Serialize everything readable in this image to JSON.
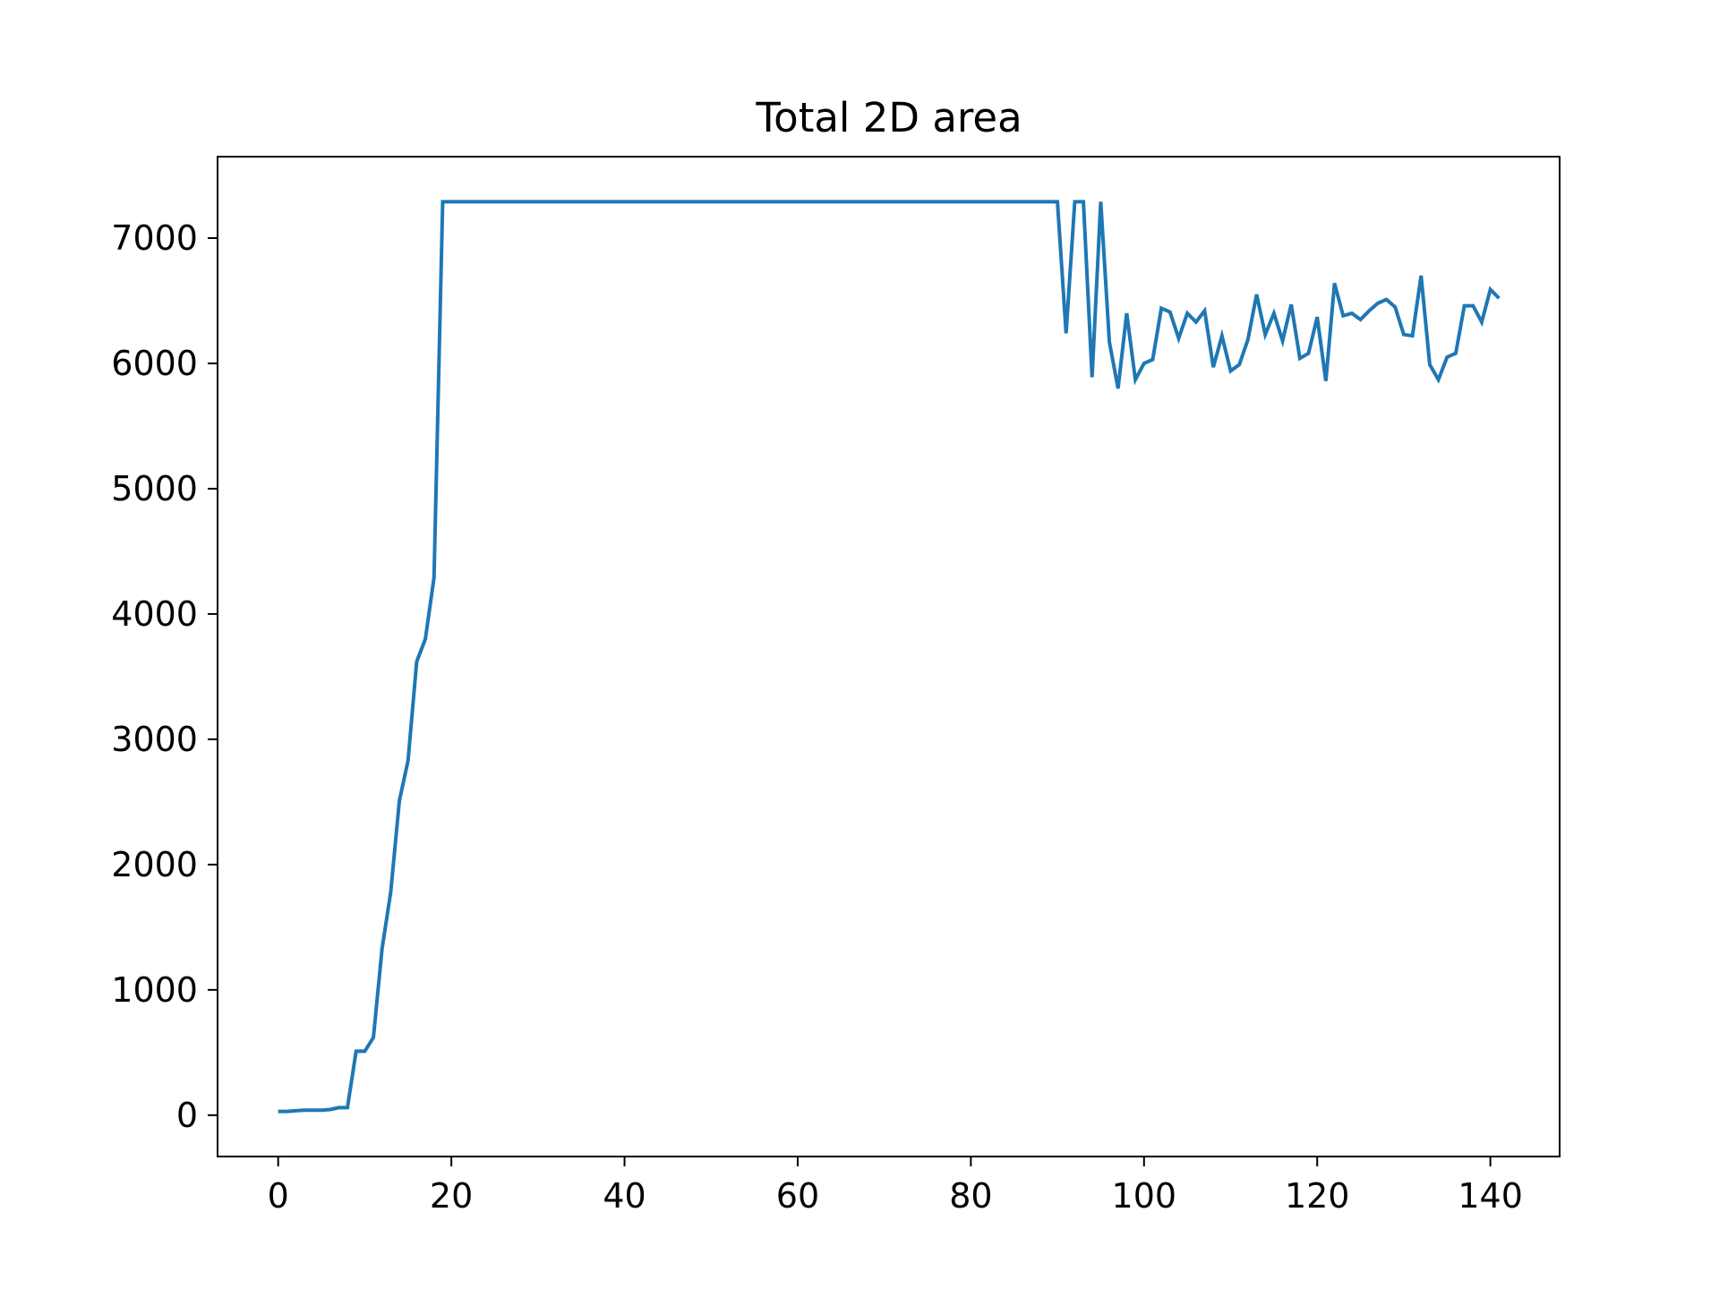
{
  "chart_data": {
    "type": "line",
    "title": "Total 2D area",
    "xlabel": "",
    "ylabel": "",
    "xlim": [
      -7,
      148
    ],
    "ylim": [
      -330,
      7650
    ],
    "grid": false,
    "legend": "none",
    "xticks": [
      0,
      20,
      40,
      60,
      80,
      100,
      120,
      140
    ],
    "yticks": [
      0,
      1000,
      2000,
      3000,
      4000,
      5000,
      6000,
      7000
    ],
    "line_color": "#1f77b4",
    "series": [
      {
        "x": [
          0,
          1,
          2,
          3,
          4,
          5,
          6,
          7,
          8,
          9,
          10,
          11,
          12,
          13,
          14,
          15,
          16,
          17,
          18,
          19,
          20,
          21,
          22,
          23,
          24,
          25,
          26,
          27,
          28,
          29,
          30,
          31,
          32,
          33,
          34,
          35,
          36,
          37,
          38,
          39,
          40,
          41,
          42,
          43,
          44,
          45,
          46,
          47,
          48,
          49,
          50,
          51,
          52,
          53,
          54,
          55,
          56,
          57,
          58,
          59,
          60,
          61,
          62,
          63,
          64,
          65,
          66,
          67,
          68,
          69,
          70,
          71,
          72,
          73,
          74,
          75,
          76,
          77,
          78,
          79,
          80,
          81,
          82,
          83,
          84,
          85,
          86,
          87,
          88,
          89,
          90,
          91,
          92,
          93,
          94,
          95,
          96,
          97,
          98,
          99,
          100,
          101,
          102,
          103,
          104,
          105,
          106,
          107,
          108,
          109,
          110,
          111,
          112,
          113,
          114,
          115,
          116,
          117,
          118,
          119,
          120,
          121,
          122,
          123,
          124,
          125,
          126,
          127,
          128,
          129,
          130,
          131,
          132,
          133,
          134,
          135,
          136,
          137,
          138,
          139,
          140,
          141
        ],
        "y": [
          30,
          30,
          35,
          40,
          40,
          40,
          45,
          60,
          60,
          510,
          510,
          620,
          1330,
          1780,
          2510,
          2830,
          3620,
          3800,
          4290,
          7290,
          7290,
          7290,
          7290,
          7290,
          7290,
          7290,
          7290,
          7290,
          7290,
          7290,
          7290,
          7290,
          7290,
          7290,
          7290,
          7290,
          7290,
          7290,
          7290,
          7290,
          7290,
          7290,
          7290,
          7290,
          7290,
          7290,
          7290,
          7290,
          7290,
          7290,
          7290,
          7290,
          7290,
          7290,
          7290,
          7290,
          7290,
          7290,
          7290,
          7290,
          7290,
          7290,
          7290,
          7290,
          7290,
          7290,
          7290,
          7290,
          7290,
          7290,
          7290,
          7290,
          7290,
          7290,
          7290,
          7290,
          7290,
          7290,
          7290,
          7290,
          7290,
          7290,
          7290,
          7290,
          7290,
          7290,
          7290,
          7290,
          7290,
          7290,
          7290,
          6240,
          7290,
          7290,
          5890,
          7290,
          6170,
          5800,
          6400,
          5870,
          6000,
          6030,
          6440,
          6410,
          6200,
          6400,
          6330,
          6420,
          5970,
          6220,
          5940,
          5990,
          6190,
          6550,
          6230,
          6400,
          6180,
          6470,
          6040,
          6080,
          6370,
          5860,
          6640,
          6380,
          6400,
          6350,
          6420,
          6480,
          6510,
          6450,
          6230,
          6220,
          6700,
          5990,
          5870,
          6050,
          6080,
          6460,
          6460,
          6330,
          6590,
          6520
        ]
      }
    ]
  }
}
